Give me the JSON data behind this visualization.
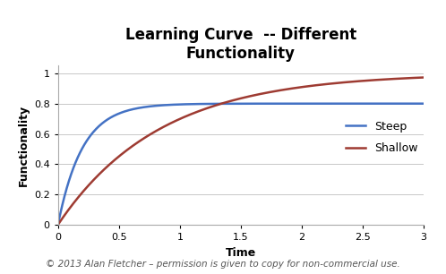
{
  "title": "Learning Curve  -- Different\nFunctionality",
  "xlabel": "Time",
  "ylabel": "Functionality",
  "xlim": [
    0,
    3
  ],
  "ylim": [
    0,
    1.05
  ],
  "xticks": [
    0,
    0.5,
    1,
    1.5,
    2,
    2.5,
    3
  ],
  "yticks": [
    0,
    0.2,
    0.4,
    0.6,
    0.8,
    1
  ],
  "steep_color": "#4472C4",
  "shallow_color": "#9E3B32",
  "steep_label": "Steep",
  "shallow_label": "Shallow",
  "steep_asymptote": 0.8,
  "steep_rate": 5.0,
  "shallow_asymptote": 1.0,
  "shallow_rate": 1.2,
  "copyright_text": "© 2013 Alan Fletcher – permission is given to copy for non-commercial use.",
  "background_color": "#FFFFFF",
  "title_fontsize": 12,
  "axis_label_fontsize": 9,
  "tick_fontsize": 8,
  "legend_fontsize": 9,
  "copyright_fontsize": 7.5
}
